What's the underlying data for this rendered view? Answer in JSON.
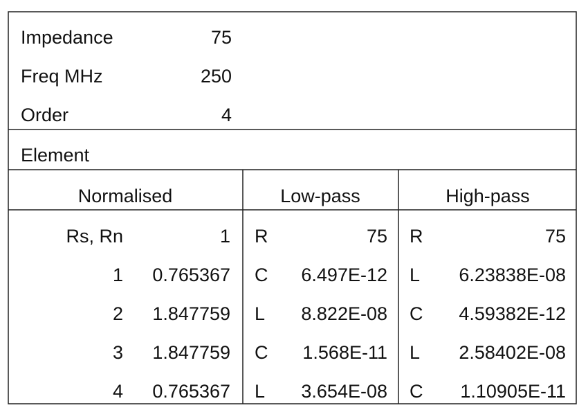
{
  "params": {
    "rows": [
      [
        "Impedance",
        "75"
      ],
      [
        "Freq MHz",
        "250"
      ],
      [
        "Order",
        "4"
      ]
    ]
  },
  "element_label": "Element",
  "table": {
    "headers": [
      "Normalised",
      "Low-pass",
      "High-pass"
    ],
    "rows": [
      [
        "Rs, Rn",
        "1",
        "R",
        "75",
        "R",
        "75"
      ],
      [
        "1",
        "0.765367",
        "C",
        "6.497E-12",
        "L",
        "6.23838E-08"
      ],
      [
        "2",
        "1.847759",
        "L",
        "8.822E-08",
        "C",
        "4.59382E-12"
      ],
      [
        "3",
        "1.847759",
        "C",
        "1.568E-11",
        "L",
        "2.58402E-08"
      ],
      [
        "4",
        "0.765367",
        "L",
        "3.654E-08",
        "C",
        "1.10905E-11"
      ]
    ]
  }
}
